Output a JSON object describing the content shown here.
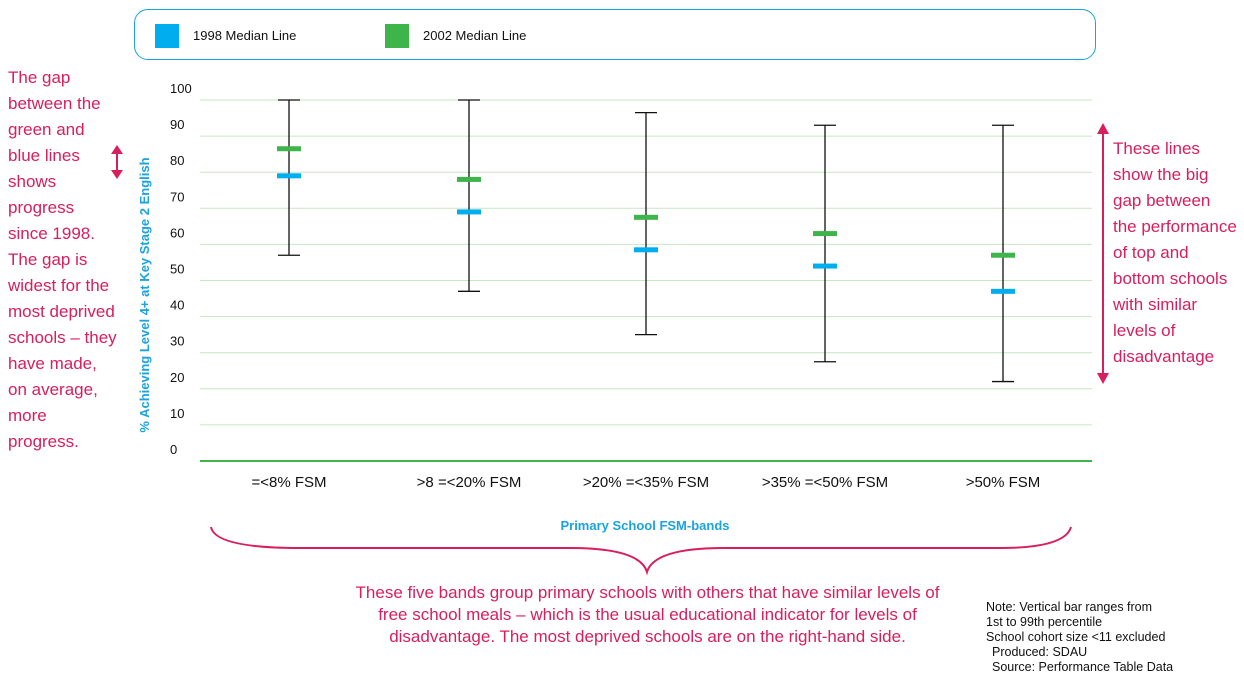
{
  "chart_data": {
    "type": "range-bar",
    "title": "",
    "xlabel": "Primary School FSM-bands",
    "ylabel": "% Achieving Level 4+ at Key Stage 2 English",
    "ylim": [
      0,
      100
    ],
    "yticks": [
      0,
      10,
      20,
      30,
      40,
      50,
      60,
      70,
      80,
      90,
      100
    ],
    "grid": true,
    "legend_placement": "top",
    "categories": [
      "=<8% FSM",
      ">8 =<20% FSM",
      ">20% =<35% FSM",
      ">35% =<50% FSM",
      ">50% FSM"
    ],
    "range_low": [
      57,
      47,
      35,
      27.5,
      22
    ],
    "range_high": [
      100,
      100,
      96.5,
      93,
      93
    ],
    "series": [
      {
        "name": "1998 Median Line",
        "color": "#00aeef",
        "values": [
          79,
          69,
          58.5,
          54,
          47
        ]
      },
      {
        "name": "2002 Median Line",
        "color": "#3db54a",
        "values": [
          86.5,
          78,
          67.5,
          63,
          57
        ]
      }
    ]
  },
  "colors": {
    "grid": "#c8e6c4",
    "axis": "#3db54a",
    "range_bar": "#111111",
    "ylabel": "#1aa3dd",
    "annotation": "#d81e5b",
    "legend_border": "#1aa3dd"
  },
  "annotations": {
    "left": "The gap between the green and blue lines shows progress since 1998. The gap is widest for the most deprived schools – they have made, on average, more progress.",
    "right": "These lines show the big gap between the performance of top and bottom schools with similar levels of disadvantage",
    "bottom": "These five bands group primary schools with others that have similar levels of free school meals – which is the usual educational indicator for levels of disadvantage. The most deprived schools are on the right-hand side."
  },
  "notes": {
    "note_title": "Note: Vertical bar ranges from",
    "note_line2": "1st to 99th percentile",
    "note_line3": "School cohort size <11 excluded",
    "produced": "Produced: SDAU",
    "source": "Source: Performance Table Data"
  }
}
